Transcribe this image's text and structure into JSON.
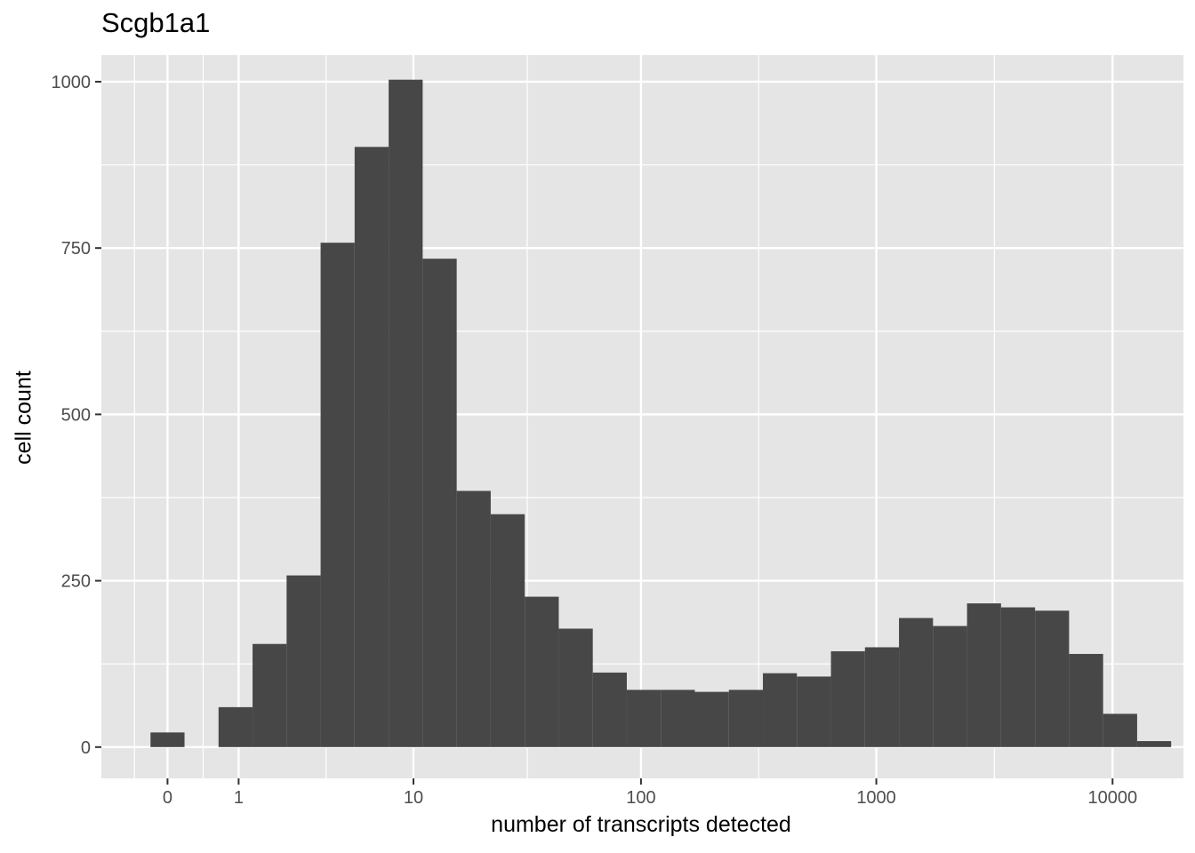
{
  "chart_data": {
    "type": "bar",
    "title": "Scgb1a1",
    "xlabel": "number of transcripts detected",
    "ylabel": "cell count",
    "ylim": [
      -47,
      1040
    ],
    "x_scale": "log10(x+1)",
    "xlim_log": [
      -0.28,
      4.3
    ],
    "yticks": [
      0,
      250,
      500,
      750,
      1000
    ],
    "ytick_labels": [
      "0",
      "250",
      "500",
      "750",
      "1000"
    ],
    "xticks_log": [
      0,
      0.301,
      1.041,
      2.004,
      3.0,
      4.0
    ],
    "xtick_labels": [
      "0",
      "1",
      "10",
      "100",
      "1000",
      "10000"
    ],
    "grid": true,
    "bin_width_log": 0.144,
    "bins": [
      {
        "center_log": 0.0,
        "count": 22
      },
      {
        "center_log": 0.288,
        "count": 60
      },
      {
        "center_log": 0.432,
        "count": 155
      },
      {
        "center_log": 0.576,
        "count": 258
      },
      {
        "center_log": 0.72,
        "count": 758
      },
      {
        "center_log": 0.864,
        "count": 902
      },
      {
        "center_log": 1.008,
        "count": 1003
      },
      {
        "center_log": 1.152,
        "count": 734
      },
      {
        "center_log": 1.296,
        "count": 385
      },
      {
        "center_log": 1.44,
        "count": 350
      },
      {
        "center_log": 1.584,
        "count": 226
      },
      {
        "center_log": 1.728,
        "count": 178
      },
      {
        "center_log": 1.872,
        "count": 112
      },
      {
        "center_log": 2.016,
        "count": 86
      },
      {
        "center_log": 2.16,
        "count": 86
      },
      {
        "center_log": 2.304,
        "count": 83
      },
      {
        "center_log": 2.448,
        "count": 86
      },
      {
        "center_log": 2.592,
        "count": 111
      },
      {
        "center_log": 2.736,
        "count": 106
      },
      {
        "center_log": 2.88,
        "count": 144
      },
      {
        "center_log": 3.024,
        "count": 150
      },
      {
        "center_log": 3.168,
        "count": 194
      },
      {
        "center_log": 3.312,
        "count": 182
      },
      {
        "center_log": 3.456,
        "count": 216
      },
      {
        "center_log": 3.6,
        "count": 210
      },
      {
        "center_log": 3.744,
        "count": 205
      },
      {
        "center_log": 3.888,
        "count": 140
      },
      {
        "center_log": 4.032,
        "count": 50
      },
      {
        "center_log": 4.176,
        "count": 9
      }
    ],
    "colors": {
      "panel": "#e5e5e5",
      "grid_major": "#ffffff",
      "bar": "#474747",
      "tick": "#333333",
      "tick_text": "#4d4d4d"
    }
  }
}
